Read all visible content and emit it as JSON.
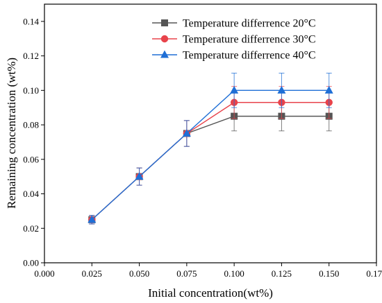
{
  "chart_data": {
    "type": "line",
    "title": "",
    "xlabel": "Initial concentration(wt%)",
    "ylabel": "Remaining concentration (wt%)",
    "xlim": [
      0.0,
      0.175
    ],
    "ylim": [
      0.0,
      0.15
    ],
    "x_ticks": [
      "0.000",
      "0.025",
      "0.050",
      "0.075",
      "0.100",
      "0.125",
      "0.150",
      "0.175"
    ],
    "y_ticks": [
      "0.00",
      "0.02",
      "0.04",
      "0.06",
      "0.08",
      "0.10",
      "0.12",
      "0.14"
    ],
    "x_tick_values": [
      0.0,
      0.025,
      0.05,
      0.075,
      0.1,
      0.125,
      0.15,
      0.175
    ],
    "y_tick_values": [
      0.0,
      0.02,
      0.04,
      0.06,
      0.08,
      0.1,
      0.12,
      0.14
    ],
    "grid": false,
    "legend_position": "top-right",
    "x": [
      0.025,
      0.05,
      0.075,
      0.1,
      0.125,
      0.15
    ],
    "series": [
      {
        "name": "Temperature differrence 20°C",
        "marker": "square",
        "color": "#555555",
        "values": [
          0.025,
          0.05,
          0.075,
          0.085,
          0.085,
          0.085
        ],
        "errors": [
          0.0025,
          0.005,
          0.0075,
          0.0085,
          0.0085,
          0.0085
        ]
      },
      {
        "name": "Temperature differrence 30°C",
        "marker": "circle",
        "color": "#e8434b",
        "values": [
          0.025,
          0.05,
          0.075,
          0.093,
          0.093,
          0.093
        ],
        "errors": [
          0.0025,
          0.005,
          0.0075,
          0.0093,
          0.0093,
          0.0093
        ]
      },
      {
        "name": "Temperature differrence 40°C",
        "marker": "triangle",
        "color": "#1f6fd6",
        "values": [
          0.025,
          0.05,
          0.075,
          0.1,
          0.1,
          0.1
        ],
        "errors": [
          0.0025,
          0.005,
          0.0075,
          0.01,
          0.01,
          0.01
        ]
      }
    ]
  }
}
